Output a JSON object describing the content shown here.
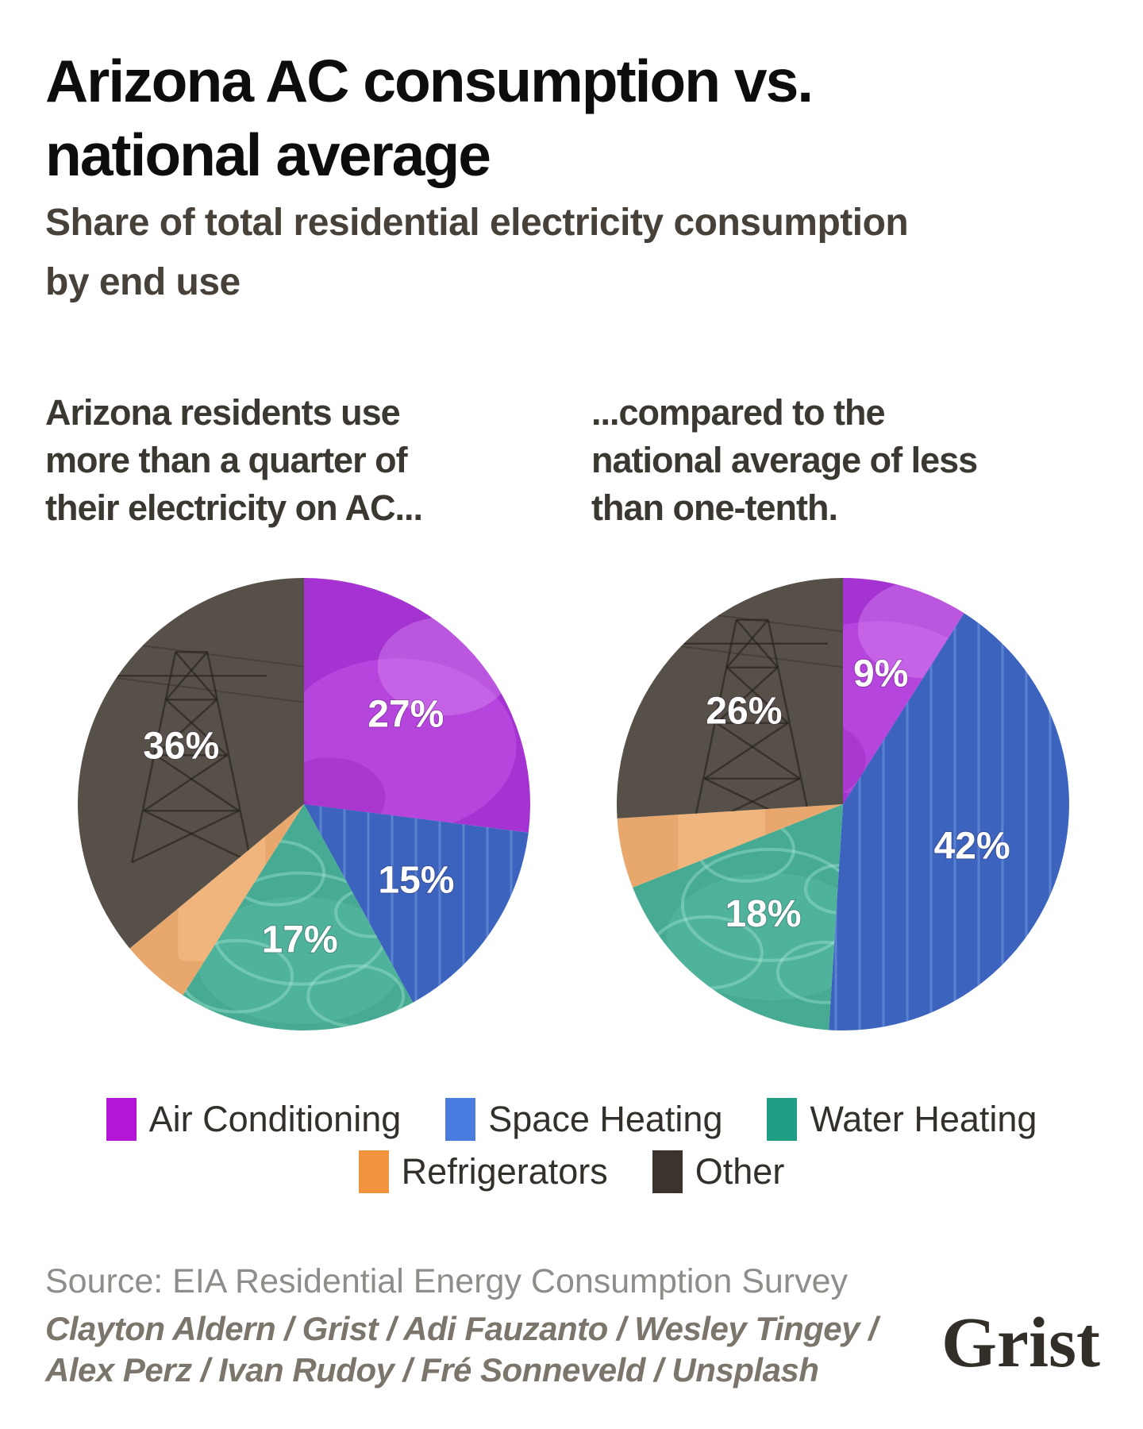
{
  "header": {
    "title_lines": [
      "Arizona AC consumption vs.",
      "national average"
    ],
    "subtitle_lines": [
      "Share of total residential electricity consumption",
      "by end use"
    ]
  },
  "annotations": {
    "left_lines": [
      "Arizona residents use",
      "more than a quarter of",
      "their electricity on AC..."
    ],
    "right_lines": [
      "...compared to the",
      "national average of less",
      "than one-tenth."
    ]
  },
  "chart_data": {
    "type": "pie",
    "unit": "%",
    "title": "Arizona AC consumption vs. national average",
    "subtitle": "Share of total residential electricity consumption by end use",
    "legend_position": "bottom",
    "start_angle": "12-o-clock, clockwise",
    "categories": [
      {
        "key": "ac",
        "label": "Air Conditioning",
        "legend_color": "#b416d8",
        "pie_color": "#a433d1"
      },
      {
        "key": "space_heating",
        "label": "Space Heating",
        "legend_color": "#4a7ce0",
        "pie_color": "#3c63bd"
      },
      {
        "key": "water_heating",
        "label": "Water Heating",
        "legend_color": "#209e83",
        "pie_color": "#46ab92"
      },
      {
        "key": "refrigerators",
        "label": "Refrigerators",
        "legend_color": "#f0943f",
        "pie_color": "#e8a76c"
      },
      {
        "key": "other",
        "label": "Other",
        "legend_color": "#3a342c",
        "pie_color": "#575049"
      }
    ],
    "pies": [
      {
        "name": "arizona",
        "caption": "Arizona residents use more than a quarter of their electricity on AC...",
        "values": [
          27,
          15,
          17,
          5,
          36
        ],
        "value_labels": [
          "27%",
          "15%",
          "17%",
          "",
          "36%"
        ]
      },
      {
        "name": "national",
        "caption": "...compared to the national average of less than one-tenth.",
        "values": [
          9,
          42,
          18,
          5,
          26
        ],
        "value_labels": [
          "9%",
          "42%",
          "18%",
          "",
          "26%"
        ]
      }
    ]
  },
  "footer": {
    "source": "Source: EIA Residential Energy Consumption Survey",
    "credit_lines": [
      "Clayton Aldern / Grist / Adi Fauzanto / Wesley Tingey /",
      "Alex Perz / Ivan Rudoy / Fré Sonneveld / Unsplash"
    ],
    "logo": "Grist"
  }
}
